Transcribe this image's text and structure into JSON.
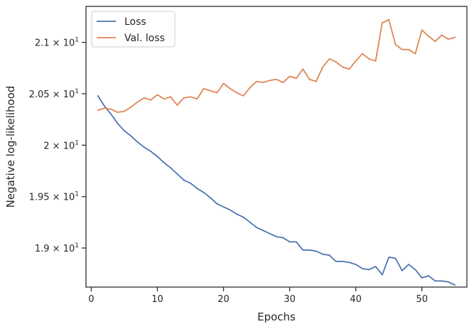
{
  "chart_data": {
    "type": "line",
    "xlabel": "Epochs",
    "ylabel": "Negative log-likelihood",
    "xlim": [
      -0.8,
      56.8
    ],
    "ylim": [
      18.62,
      21.35
    ],
    "x_ticks": [
      {
        "value": 0,
        "label": "0"
      },
      {
        "value": 10,
        "label": "10"
      },
      {
        "value": 20,
        "label": "20"
      },
      {
        "value": 30,
        "label": "30"
      },
      {
        "value": 40,
        "label": "40"
      },
      {
        "value": 50,
        "label": "50"
      }
    ],
    "y_ticks": [
      {
        "value": 19.0,
        "mantissa": "1.9",
        "base": "10",
        "exp": "1"
      },
      {
        "value": 19.5,
        "mantissa": "1.95",
        "base": "10",
        "exp": "1"
      },
      {
        "value": 20.0,
        "mantissa": "2",
        "base": "10",
        "exp": "1"
      },
      {
        "value": 20.5,
        "mantissa": "2.05",
        "base": "10",
        "exp": "1"
      },
      {
        "value": 21.0,
        "mantissa": "2.1",
        "base": "10",
        "exp": "1"
      }
    ],
    "legend_position": "upper-left",
    "x": [
      1,
      2,
      3,
      4,
      5,
      6,
      7,
      8,
      9,
      10,
      11,
      12,
      13,
      14,
      15,
      16,
      17,
      18,
      19,
      20,
      21,
      22,
      23,
      24,
      25,
      26,
      27,
      28,
      29,
      30,
      31,
      32,
      33,
      34,
      35,
      36,
      37,
      38,
      39,
      40,
      41,
      42,
      43,
      44,
      45,
      46,
      47,
      48,
      49,
      50,
      51,
      52,
      53,
      54,
      55
    ],
    "series": [
      {
        "name": "Loss",
        "color": "#4c72b0",
        "values": [
          20.48,
          20.38,
          20.3,
          20.21,
          20.14,
          20.09,
          20.03,
          19.98,
          19.94,
          19.89,
          19.83,
          19.78,
          19.72,
          19.66,
          19.63,
          19.58,
          19.54,
          19.49,
          19.43,
          19.4,
          19.37,
          19.33,
          19.3,
          19.25,
          19.2,
          19.17,
          19.14,
          19.11,
          19.1,
          19.06,
          19.06,
          18.98,
          18.98,
          18.97,
          18.94,
          18.93,
          18.87,
          18.87,
          18.86,
          18.84,
          18.8,
          18.79,
          18.82,
          18.74,
          18.91,
          18.9,
          18.78,
          18.84,
          18.79,
          18.71,
          18.73,
          18.68,
          18.68,
          18.67,
          18.64
        ]
      },
      {
        "name": "Val. loss",
        "color": "#dd8452",
        "values": [
          20.34,
          20.36,
          20.35,
          20.32,
          20.33,
          20.37,
          20.42,
          20.46,
          20.44,
          20.49,
          20.45,
          20.47,
          20.39,
          20.46,
          20.47,
          20.45,
          20.55,
          20.53,
          20.51,
          20.6,
          20.55,
          20.51,
          20.48,
          20.56,
          20.62,
          20.61,
          20.63,
          20.64,
          20.61,
          20.67,
          20.65,
          20.74,
          20.64,
          20.62,
          20.76,
          20.84,
          20.81,
          20.76,
          20.74,
          20.82,
          20.89,
          20.84,
          20.82,
          21.19,
          21.22,
          20.98,
          20.93,
          20.93,
          20.89,
          21.12,
          21.06,
          21.01,
          21.07,
          21.03,
          21.05
        ]
      }
    ]
  }
}
